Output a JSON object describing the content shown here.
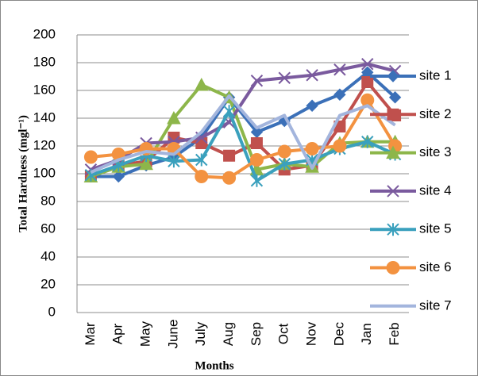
{
  "chart_data": {
    "type": "line",
    "y_label": "Total Hardness (mgl⁻¹)",
    "x_label": "Months",
    "categories": [
      "Mar",
      "Apr",
      "May",
      "June",
      "July",
      "Aug",
      "Sep",
      "Oct",
      "Nov",
      "Dec",
      "Jan",
      "Feb"
    ],
    "ylim": [
      0,
      200
    ],
    "yticks": [
      0,
      20,
      40,
      60,
      80,
      100,
      120,
      140,
      160,
      180,
      200
    ],
    "grid": true,
    "legend": "right",
    "series": [
      {
        "name": "site 1",
        "color": "#3b70b8",
        "marker": "diamond",
        "values": [
          98,
          98,
          106,
          112,
          126,
          155,
          130,
          138,
          149,
          157,
          173,
          155
        ]
      },
      {
        "name": "site 2",
        "color": "#c0504d",
        "marker": "square",
        "values": [
          98,
          106,
          109,
          126,
          122,
          113,
          122,
          103,
          106,
          134,
          166,
          142
        ]
      },
      {
        "name": "site 3",
        "color": "#8db64a",
        "marker": "triangle",
        "values": [
          98,
          105,
          107,
          140,
          164,
          155,
          103,
          107,
          105,
          122,
          123,
          123
        ]
      },
      {
        "name": "site 4",
        "color": "#7a5a9e",
        "marker": "x",
        "values": [
          103,
          110,
          122,
          123,
          126,
          137,
          167,
          169,
          171,
          175,
          179,
          174
        ]
      },
      {
        "name": "site 5",
        "color": "#3aa0bd",
        "marker": "star",
        "values": [
          99,
          106,
          113,
          109,
          110,
          145,
          95,
          107,
          110,
          118,
          123,
          114
        ]
      },
      {
        "name": "site 6",
        "color": "#f39240",
        "marker": "circle",
        "values": [
          112,
          114,
          118,
          118,
          98,
          97,
          110,
          116,
          118,
          120,
          153,
          120
        ]
      },
      {
        "name": "site 7",
        "color": "#a3b5dd",
        "marker": "none",
        "values": [
          101,
          110,
          116,
          114,
          130,
          156,
          133,
          142,
          104,
          142,
          149,
          135
        ]
      }
    ]
  }
}
